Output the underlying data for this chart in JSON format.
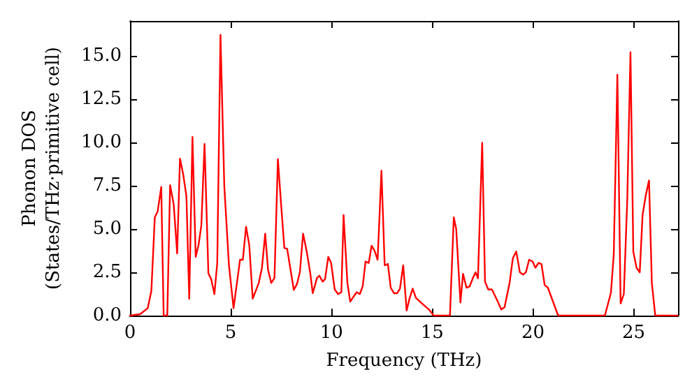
{
  "chart_data": {
    "type": "line",
    "xlabel": "Frequency (THz)",
    "ylabel": "Phonon DOS\n(States/THz·primitive cell)",
    "x": [
      0,
      0.5,
      0.88,
      1.06,
      1.23,
      1.37,
      1.55,
      1.67,
      1.85,
      1.99,
      2.17,
      2.34,
      2.48,
      2.64,
      2.8,
      2.94,
      3.1,
      3.26,
      3.4,
      3.54,
      3.7,
      3.89,
      4.03,
      4.19,
      4.33,
      4.49,
      4.68,
      4.91,
      5.14,
      5.3,
      5.46,
      5.6,
      5.76,
      5.92,
      6.09,
      6.39,
      6.55,
      6.71,
      6.85,
      7.01,
      7.17,
      7.34,
      7.5,
      7.66,
      7.8,
      7.96,
      8.13,
      8.29,
      8.43,
      8.59,
      8.77,
      8.94,
      9.07,
      9.28,
      9.4,
      9.56,
      9.68,
      9.84,
      9.98,
      10.16,
      10.33,
      10.49,
      10.6,
      10.79,
      10.93,
      11.09,
      11.25,
      11.41,
      11.55,
      11.69,
      11.85,
      11.99,
      12.13,
      12.29,
      12.48,
      12.64,
      12.8,
      12.94,
      13.1,
      13.26,
      13.4,
      13.56,
      13.73,
      13.87,
      14.03,
      14.19,
      14.49,
      14.84,
      15.07,
      15.88,
      16.07,
      16.19,
      16.4,
      16.53,
      16.7,
      16.86,
      17.04,
      17.15,
      17.27,
      17.48,
      17.62,
      17.78,
      17.96,
      18.19,
      18.43,
      18.59,
      18.84,
      19,
      19.17,
      19.35,
      19.51,
      19.65,
      19.81,
      19.98,
      20.12,
      20.28,
      20.42,
      20.58,
      20.74,
      21.25,
      23.57,
      23.87,
      24.01,
      24.19,
      24.35,
      24.51,
      24.68,
      24.84,
      24.98,
      25.14,
      25.3,
      25.44,
      25.6,
      25.76,
      25.9,
      26.07,
      27.18
    ],
    "series": [
      {
        "color": "#ff0000",
        "values": [
          0,
          0.08,
          0.43,
          1.43,
          5.67,
          6.0,
          7.42,
          0,
          0,
          7.53,
          6.4,
          3.58,
          9.06,
          8.15,
          6.88,
          0.97,
          10.3,
          3.39,
          4.06,
          5.2,
          9.9,
          2.44,
          2.1,
          1.24,
          3.04,
          16.2,
          7.47,
          2.9,
          0.43,
          1.83,
          3.22,
          3.22,
          5.13,
          4.06,
          0.97,
          1.88,
          2.76,
          4.73,
          2.65,
          1.88,
          2.17,
          9.03,
          6.4,
          3.9,
          3.85,
          2.7,
          1.48,
          1.83,
          2.5,
          4.73,
          3.7,
          2.5,
          1.29,
          2.17,
          2.3,
          1.96,
          2.1,
          3.39,
          3.04,
          1.51,
          1.24,
          1.35,
          5.8,
          1.88,
          0.8,
          1.08,
          1.35,
          1.24,
          1.7,
          3.12,
          3.04,
          4.03,
          3.76,
          3.22,
          8.36,
          2.9,
          2.98,
          1.61,
          1.29,
          1.29,
          1.56,
          2.9,
          0.29,
          0.97,
          1.56,
          1.02,
          0.7,
          0.35,
          0,
          0,
          5.67,
          5.0,
          0.75,
          2.41,
          1.61,
          1.69,
          2.23,
          2.5,
          2.15,
          9.97,
          1.96,
          1.51,
          1.51,
          0.97,
          0.35,
          0.48,
          1.88,
          3.3,
          3.7,
          2.5,
          2.36,
          2.5,
          3.22,
          3.12,
          2.76,
          3.04,
          2.98,
          1.77,
          1.61,
          0,
          0,
          1.32,
          3.52,
          13.9,
          0.7,
          1.24,
          6.67,
          15.2,
          3.7,
          2.76,
          2.5,
          5.8,
          6.94,
          7.8,
          1.88,
          0,
          0
        ]
      }
    ],
    "xlim": [
      0,
      27.2
    ],
    "xticks": [
      0,
      5,
      10,
      15,
      20,
      25
    ],
    "ylim": [
      0,
      17
    ],
    "yticks": [
      {
        "value": 0,
        "label": "0.0"
      },
      {
        "value": 2.5,
        "label": "2.5"
      },
      {
        "value": 5,
        "label": "5.0"
      },
      {
        "value": 7.5,
        "label": "7.5"
      },
      {
        "value": 10,
        "label": "10.0"
      },
      {
        "value": 12.5,
        "label": "12.5"
      },
      {
        "value": 15,
        "label": "15.0"
      }
    ],
    "marker": "none",
    "line_style": "solid",
    "grid": false
  }
}
